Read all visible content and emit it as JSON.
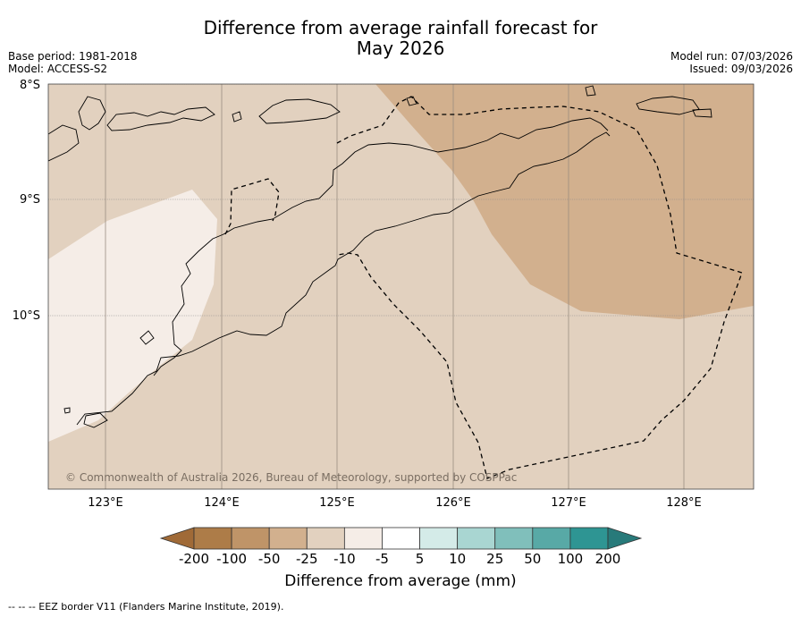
{
  "title": {
    "line1": "Difference from average rainfall forecast for",
    "line2": "May 2026"
  },
  "meta": {
    "base_period": "Base period: 1981-2018",
    "model": "Model: ACCESS-S2",
    "model_run": "Model run: 07/03/2026",
    "issued": "Issued: 09/03/2026"
  },
  "axes": {
    "lat_labels": [
      "8°S",
      "9°S",
      "10°S"
    ],
    "lon_labels": [
      "123°E",
      "124°E",
      "125°E",
      "126°E",
      "127°E",
      "128°E"
    ]
  },
  "colorbar": {
    "ticks": [
      "-200",
      "-100",
      "-50",
      "-25",
      "-10",
      "-5",
      "5",
      "10",
      "25",
      "50",
      "100",
      "200"
    ],
    "colors": [
      "#a06a37",
      "#ad7c48",
      "#bf9468",
      "#d2b08e",
      "#e2d1bf",
      "#f5ede7",
      "#ffffff",
      "#d4ebe8",
      "#a9d6d2",
      "#80bfbb",
      "#58a9a6",
      "#2e9593",
      "#287a7a"
    ],
    "label": "Difference from average (mm)"
  },
  "map_colors": {
    "base": "#e2d1bf",
    "dry": "#d2b08e",
    "light": "#f5ede7"
  },
  "copyright": "© Commonwealth of Australia 2026, Bureau of Meteorology, supported by COSPPac",
  "legend": {
    "eez": "--  --  -- EEZ border V11 (Flanders Marine Institute, 2019)."
  }
}
